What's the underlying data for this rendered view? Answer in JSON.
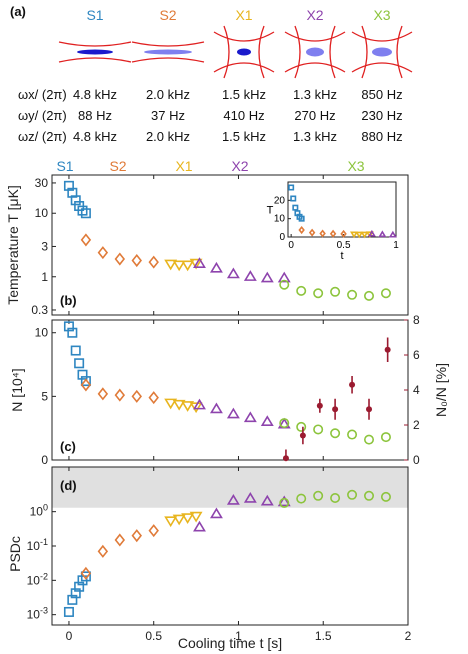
{
  "colors": {
    "S1": "#2e86c1",
    "S2": "#e07b39",
    "X1": "#e8b51f",
    "X2": "#8e44ad",
    "X3": "#8cc43c",
    "N0": "#9b1b30",
    "trap_line": "#e02020",
    "cloud": "#1a1acc",
    "cloud_light": "#7f7fef",
    "band": "#e0e0e0"
  },
  "panel_a": {
    "label": "(a)",
    "traps": [
      {
        "name": "S1",
        "color": "#2e86c1"
      },
      {
        "name": "S2",
        "color": "#e07b39"
      },
      {
        "name": "X1",
        "color": "#e8b51f"
      },
      {
        "name": "X2",
        "color": "#8e44ad"
      },
      {
        "name": "X3",
        "color": "#8cc43c"
      }
    ],
    "rows": [
      {
        "label": "ωx/ (2π)",
        "values": [
          "4.8 kHz",
          "2.0 kHz",
          "1.5 kHz",
          "1.3 kHz",
          "850 Hz"
        ]
      },
      {
        "label": "ωy/ (2π)",
        "values": [
          "88 Hz",
          "37 Hz",
          "410 Hz",
          "270 Hz",
          "230 Hz"
        ]
      },
      {
        "label": "ωz/ (2π)",
        "values": [
          "4.8 kHz",
          "2.0 kHz",
          "1.5 kHz",
          "1.3 kHz",
          "880 Hz"
        ]
      }
    ]
  },
  "chart_data": [
    {
      "panel": "(b)",
      "type": "scatter",
      "ylabel": "Temperature T [μK]",
      "yscale": "log",
      "xlim": [
        -0.1,
        2.0
      ],
      "ylim": [
        0.25,
        40
      ],
      "yticks": [
        {
          "v": 0.3,
          "label": "0.3"
        },
        {
          "v": 1,
          "label": "1"
        },
        {
          "v": 3,
          "label": "3"
        },
        {
          "v": 10,
          "label": "10"
        },
        {
          "v": 30,
          "label": "30"
        }
      ],
      "stage_labels": [
        "S1",
        "S2",
        "X1",
        "X2",
        "X3"
      ],
      "series": [
        {
          "stage": "S1",
          "marker": "square",
          "x": [
            0,
            0.02,
            0.04,
            0.06,
            0.08,
            0.1
          ],
          "y": [
            27,
            21,
            16,
            13,
            11,
            10
          ]
        },
        {
          "stage": "S2",
          "marker": "diamond",
          "x": [
            0.1,
            0.2,
            0.3,
            0.4,
            0.5
          ],
          "y": [
            3.8,
            2.4,
            1.9,
            1.8,
            1.7
          ]
        },
        {
          "stage": "X1",
          "marker": "triangle-down",
          "x": [
            0.6,
            0.65,
            0.7,
            0.75
          ],
          "y": [
            1.6,
            1.55,
            1.55,
            1.65
          ]
        },
        {
          "stage": "X2",
          "marker": "triangle-up",
          "x": [
            0.77,
            0.87,
            0.97,
            1.07,
            1.17,
            1.27
          ],
          "y": [
            1.6,
            1.35,
            1.1,
            1.0,
            0.95,
            0.95
          ]
        },
        {
          "stage": "X3",
          "marker": "circle",
          "x": [
            1.27,
            1.37,
            1.47,
            1.57,
            1.67,
            1.77,
            1.87
          ],
          "y": [
            0.75,
            0.6,
            0.55,
            0.58,
            0.52,
            0.5,
            0.55
          ]
        }
      ],
      "inset": {
        "type": "scatter",
        "xlabel": "t",
        "ylabel": "T",
        "xlim": [
          -0.03,
          1.0
        ],
        "ylim": [
          0,
          30
        ],
        "xticks": [
          0,
          0.5,
          1
        ],
        "yticks": [
          0,
          10,
          20
        ],
        "series": [
          {
            "stage": "S1",
            "marker": "square",
            "x": [
              0,
              0.02,
              0.04,
              0.06,
              0.08,
              0.1
            ],
            "y": [
              27,
              21,
              16,
              13,
              11,
              10
            ]
          },
          {
            "stage": "S2",
            "marker": "diamond",
            "x": [
              0.1,
              0.2,
              0.3,
              0.4,
              0.5
            ],
            "y": [
              3.8,
              2.4,
              1.9,
              1.8,
              1.7
            ]
          },
          {
            "stage": "X1",
            "marker": "triangle-down",
            "x": [
              0.6,
              0.65,
              0.7,
              0.75
            ],
            "y": [
              1.6,
              1.55,
              1.55,
              1.65
            ]
          },
          {
            "stage": "X2",
            "marker": "triangle-up",
            "x": [
              0.77,
              0.87,
              0.97
            ],
            "y": [
              1.6,
              1.35,
              1.1
            ]
          }
        ]
      }
    },
    {
      "panel": "(c)",
      "type": "scatter",
      "ylabel": "N [10⁴]",
      "y2label": "N₀/N [%]",
      "xlim": [
        -0.1,
        2.0
      ],
      "ylim": [
        0,
        11
      ],
      "y2lim": [
        0,
        8
      ],
      "yticks": [
        0,
        5,
        10
      ],
      "y2ticks": [
        0,
        2,
        4,
        6,
        8
      ],
      "series": [
        {
          "stage": "S1",
          "marker": "square",
          "x": [
            0,
            0.02,
            0.04,
            0.06,
            0.08,
            0.1
          ],
          "y": [
            10.5,
            10.0,
            8.6,
            7.6,
            6.7,
            6.2
          ]
        },
        {
          "stage": "S2",
          "marker": "diamond",
          "x": [
            0.1,
            0.2,
            0.3,
            0.4,
            0.5
          ],
          "y": [
            5.9,
            5.2,
            5.1,
            5.0,
            4.9
          ]
        },
        {
          "stage": "X1",
          "marker": "triangle-down",
          "x": [
            0.6,
            0.65,
            0.7,
            0.75
          ],
          "y": [
            4.5,
            4.4,
            4.3,
            4.2
          ]
        },
        {
          "stage": "X2",
          "marker": "triangle-up",
          "x": [
            0.77,
            0.87,
            0.97,
            1.07,
            1.17,
            1.27
          ],
          "y": [
            4.3,
            4.0,
            3.6,
            3.3,
            3.0,
            2.8
          ]
        },
        {
          "stage": "X3",
          "marker": "circle",
          "x": [
            1.27,
            1.37,
            1.47,
            1.57,
            1.67,
            1.77,
            1.87
          ],
          "y": [
            2.9,
            2.6,
            2.4,
            2.1,
            2.0,
            1.6,
            1.8
          ]
        }
      ],
      "condensate_fraction": {
        "axis": "right",
        "x": [
          1.28,
          1.38,
          1.48,
          1.57,
          1.67,
          1.77,
          1.88
        ],
        "y": [
          0.1,
          1.4,
          3.1,
          2.9,
          4.3,
          2.9,
          6.3
        ],
        "err": [
          0.5,
          0.5,
          0.4,
          0.6,
          0.5,
          0.6,
          0.7
        ]
      }
    },
    {
      "panel": "(d)",
      "type": "scatter",
      "xlabel": "Cooling time t [s]",
      "ylabel": "PSDc",
      "yscale": "log",
      "xlim": [
        -0.1,
        2.0
      ],
      "ylim": [
        0.0005,
        20
      ],
      "xticks": [
        0,
        0.5,
        1,
        1.5,
        2
      ],
      "yticks": [
        {
          "v": 0.001,
          "base": "10",
          "exp": "-3"
        },
        {
          "v": 0.01,
          "base": "10",
          "exp": "-2"
        },
        {
          "v": 0.1,
          "base": "10",
          "exp": "-1"
        },
        {
          "v": 1,
          "base": "10",
          "exp": "0"
        }
      ],
      "shaded_band": [
        1.3,
        20
      ],
      "series": [
        {
          "stage": "S1",
          "marker": "square",
          "x": [
            0,
            0.02,
            0.04,
            0.06,
            0.08,
            0.1
          ],
          "y": [
            0.0012,
            0.0027,
            0.0042,
            0.0065,
            0.01,
            0.013
          ]
        },
        {
          "stage": "S2",
          "marker": "diamond",
          "x": [
            0.1,
            0.2,
            0.3,
            0.4,
            0.5
          ],
          "y": [
            0.016,
            0.07,
            0.15,
            0.2,
            0.28
          ]
        },
        {
          "stage": "X1",
          "marker": "triangle-down",
          "x": [
            0.6,
            0.65,
            0.7,
            0.75
          ],
          "y": [
            0.55,
            0.62,
            0.68,
            0.75
          ]
        },
        {
          "stage": "X2",
          "marker": "triangle-up",
          "x": [
            0.77,
            0.87,
            0.97,
            1.07,
            1.17,
            1.27
          ],
          "y": [
            0.35,
            0.85,
            2.1,
            2.4,
            2.0,
            1.9
          ]
        },
        {
          "stage": "X3",
          "marker": "circle",
          "x": [
            1.27,
            1.37,
            1.47,
            1.57,
            1.67,
            1.77,
            1.87
          ],
          "y": [
            1.8,
            2.4,
            2.9,
            2.5,
            3.1,
            2.9,
            2.7
          ]
        }
      ]
    }
  ]
}
